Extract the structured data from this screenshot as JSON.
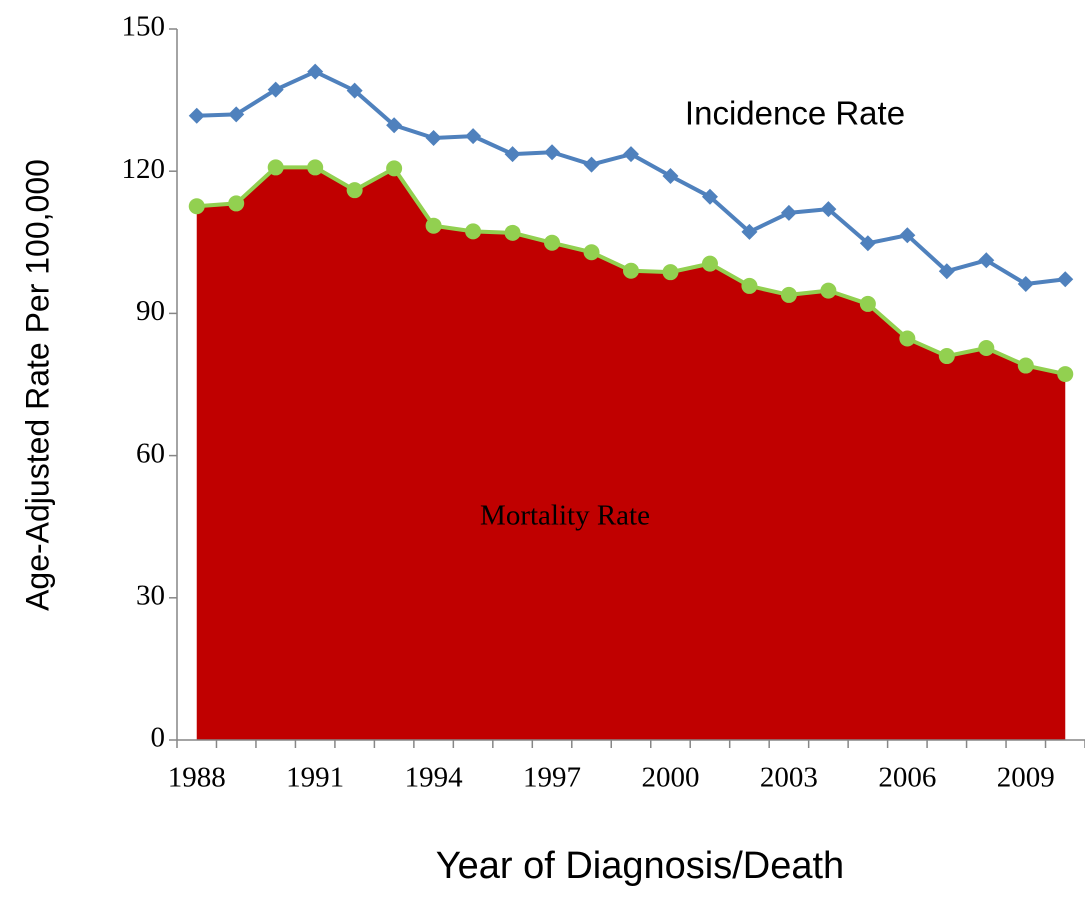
{
  "chart_data": {
    "type": "line",
    "x_label": "Year of Diagnosis/Death",
    "y_label": "Age-Adjusted Rate Per 100,000",
    "categories": [
      "1988",
      null,
      null,
      "1991",
      null,
      null,
      "1994",
      null,
      null,
      "1997",
      null,
      null,
      "2000",
      null,
      null,
      "2003",
      null,
      null,
      "2006",
      null,
      null,
      "2009",
      null
    ],
    "series": [
      {
        "name": "Incidence Rate",
        "color": "#4f81bd",
        "marker": "diamond",
        "area": false,
        "values": [
          131.7,
          132,
          137.2,
          141,
          137,
          129.7,
          127,
          127.4,
          123.6,
          124,
          121.4,
          123.6,
          119,
          114.6,
          107.2,
          111.2,
          112,
          104.8,
          106.5,
          98.9,
          101.2,
          96.2,
          97.2
        ]
      },
      {
        "name": "Mortality Rate",
        "color": "#92d050",
        "fill": "#c00000",
        "marker": "circle",
        "area": true,
        "values": [
          112.6,
          113.2,
          120.8,
          120.8,
          116,
          120.6,
          108.5,
          107.3,
          107,
          104.9,
          102.9,
          99,
          98.7,
          100.5,
          95.8,
          93.9,
          94.8,
          92,
          84.7,
          81,
          82.7,
          79,
          77.2
        ]
      }
    ],
    "ylim": [
      0,
      150
    ],
    "yticks": [
      0,
      30,
      60,
      90,
      120,
      150
    ],
    "grid": false
  }
}
